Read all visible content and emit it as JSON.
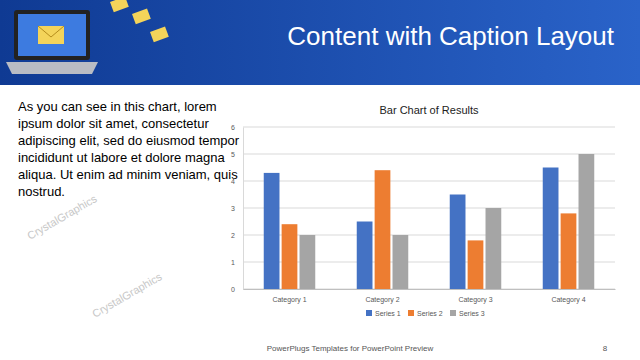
{
  "slide": {
    "title": "Content with Caption Layout",
    "caption": "As you can see in this chart, lorem ipsum dolor sit amet, consectetur adipiscing elit, sed do eiusmod tempor incididunt ut labore et dolore magna aliqua. Ut enim ad minim veniam, quis nostrud.",
    "footer": "PowerPlugs Templates for PowerPoint Preview",
    "page_number": "8",
    "watermark": "CrystalGraphics"
  },
  "chart_data": {
    "type": "bar",
    "title": "Bar Chart of Results",
    "categories": [
      "Category 1",
      "Category 2",
      "Category 3",
      "Category 4"
    ],
    "series": [
      {
        "name": "Series 1",
        "color": "#4472c4",
        "values": [
          4.3,
          2.5,
          3.5,
          4.5
        ]
      },
      {
        "name": "Series 2",
        "color": "#ed7d31",
        "values": [
          2.4,
          4.4,
          1.8,
          2.8
        ]
      },
      {
        "name": "Series 3",
        "color": "#a5a5a5",
        "values": [
          2,
          2,
          3,
          5
        ]
      }
    ],
    "ylim": [
      0,
      6
    ],
    "yticks": [
      0,
      1,
      2,
      3,
      4,
      5,
      6
    ],
    "grid": true,
    "legend": "bottom"
  }
}
